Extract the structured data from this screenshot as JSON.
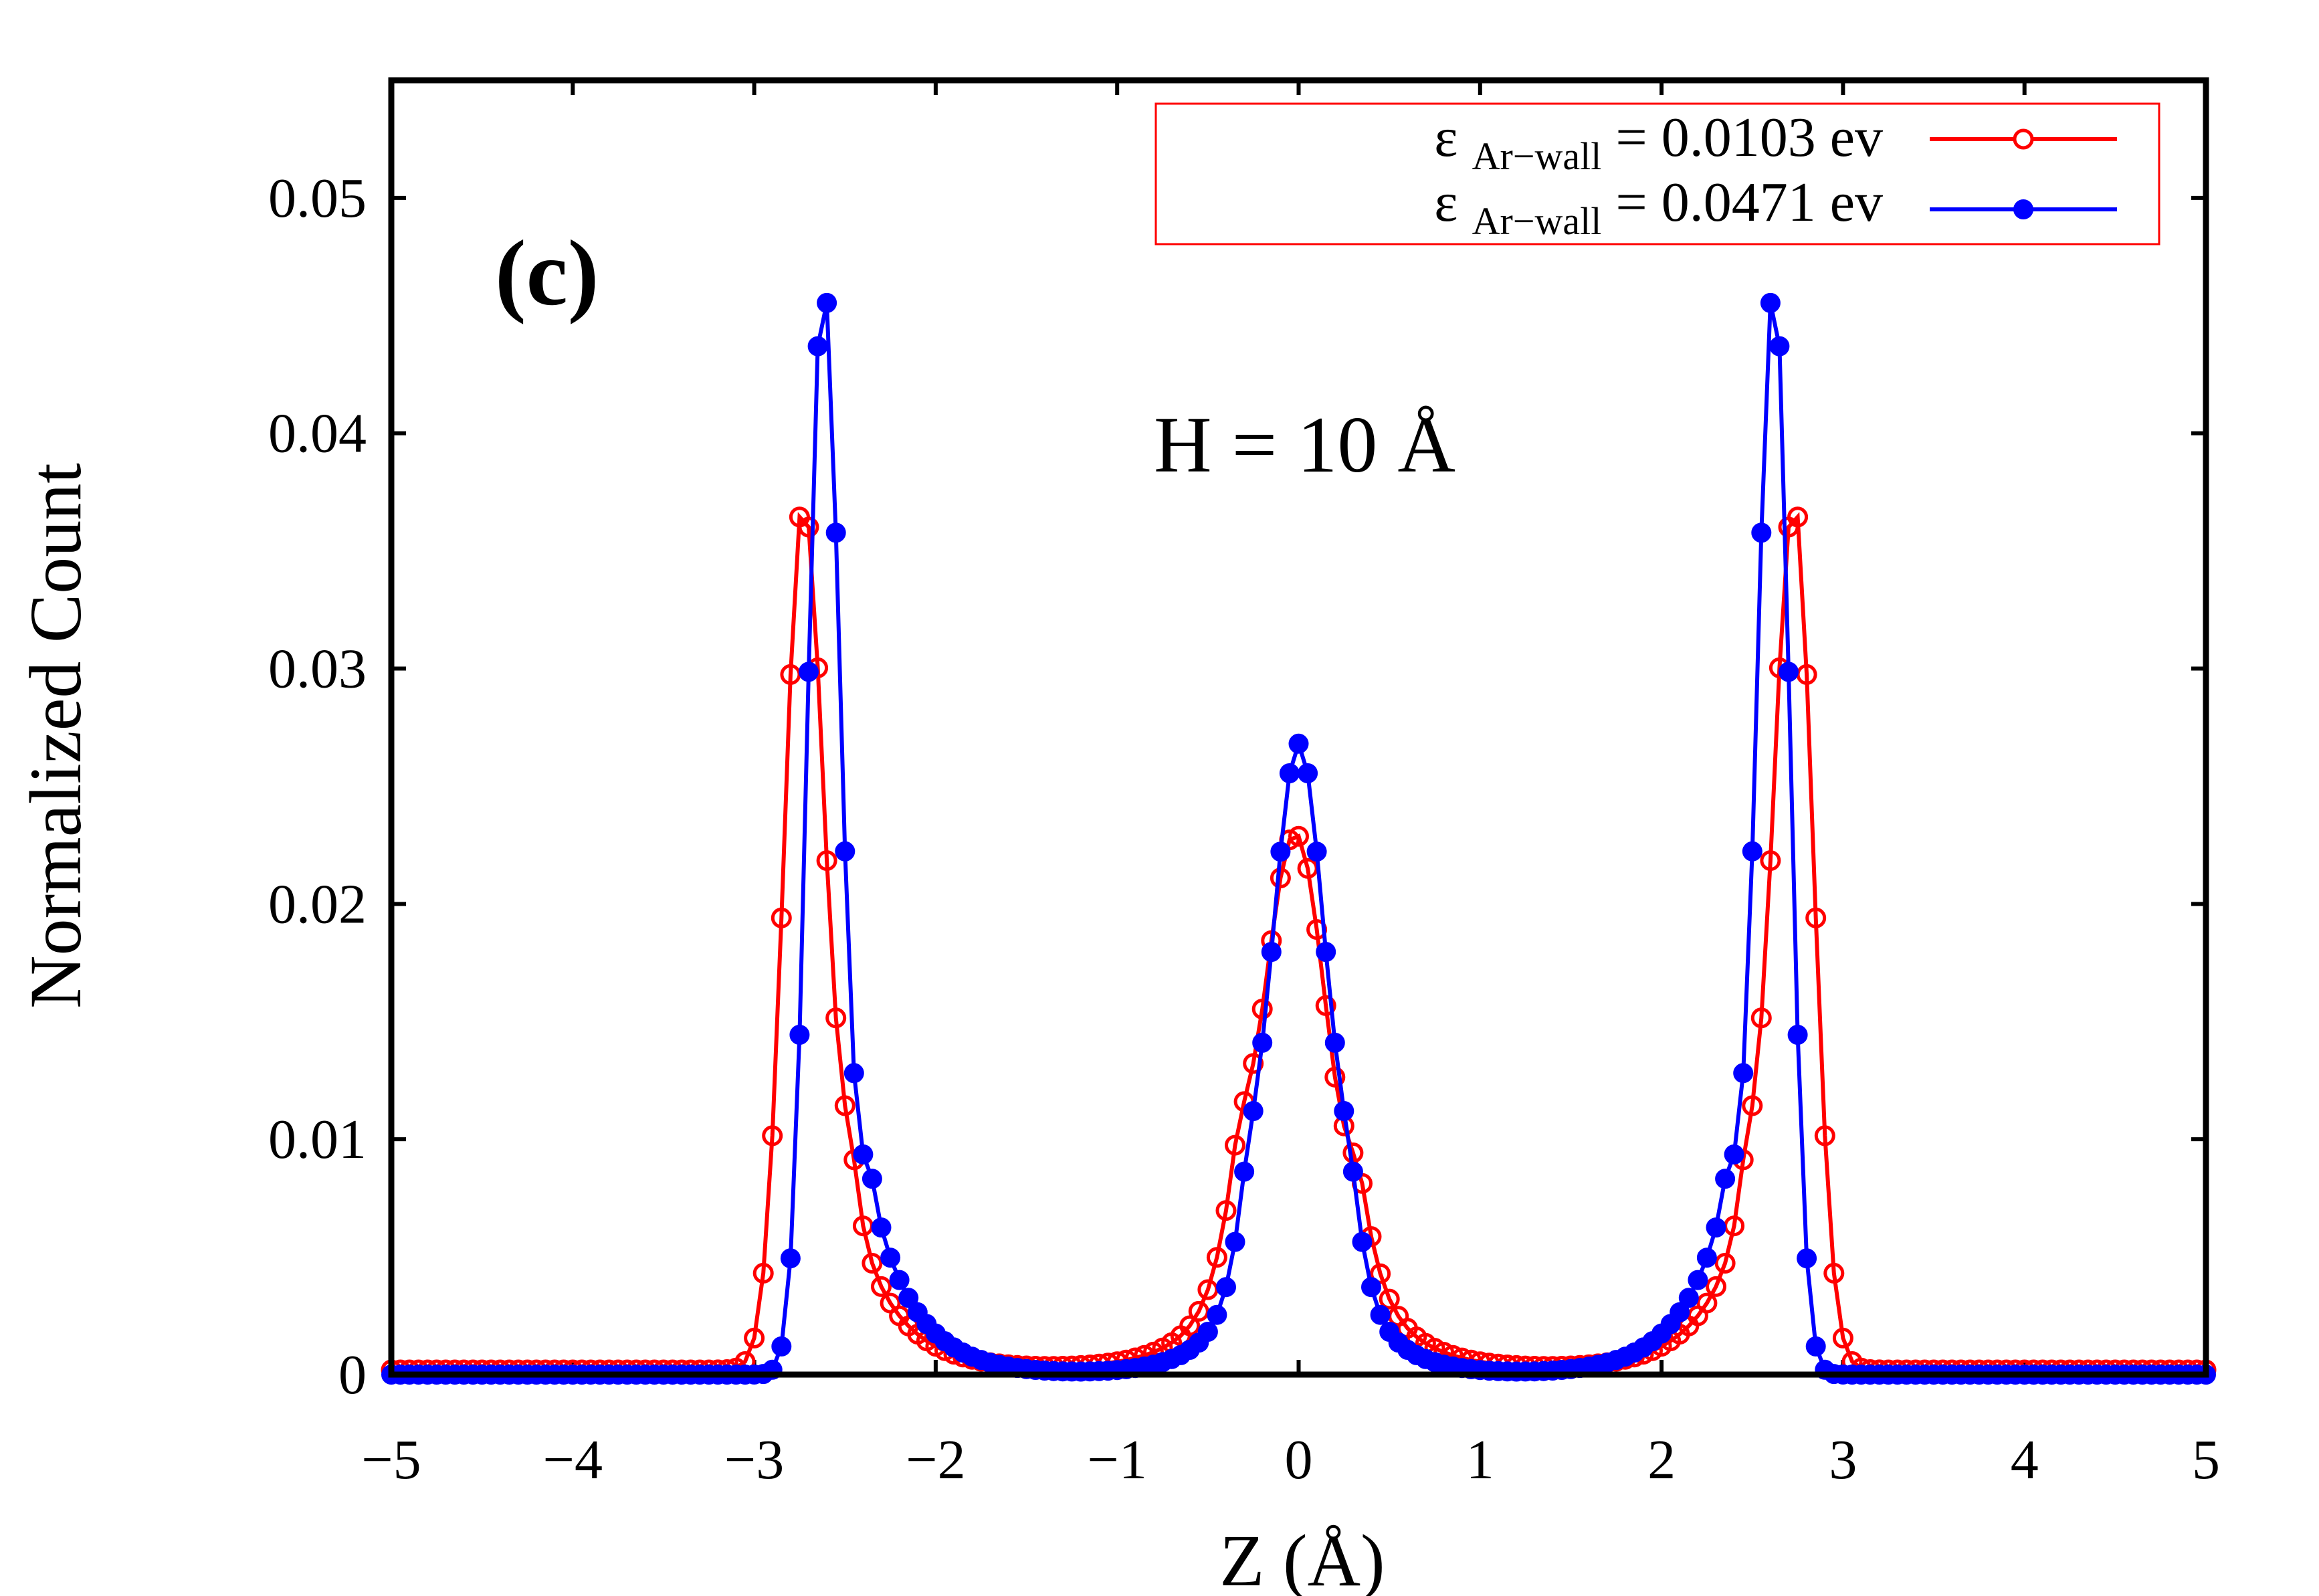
{
  "chart_data": {
    "type": "line",
    "title": "",
    "panel_label": "(c)",
    "annotation": "H = 10 Å",
    "xlabel": "Z (Å)",
    "ylabel": "Normalized Count",
    "xlim": [
      -5,
      5
    ],
    "ylim": [
      0,
      0.055
    ],
    "xticks": [
      -5,
      -4,
      -3,
      -2,
      -1,
      0,
      1,
      2,
      3,
      4,
      5
    ],
    "xtick_labels": [
      "−5",
      "−4",
      "−3",
      "−2",
      "−1",
      "0",
      "1",
      "2",
      "3",
      "4",
      "5"
    ],
    "yticks": [
      0,
      0.01,
      0.02,
      0.03,
      0.04,
      0.05
    ],
    "ytick_labels": [
      "0",
      "0.01",
      "0.02",
      "0.03",
      "0.04",
      "0.05"
    ],
    "legend_position": "top-right",
    "series": [
      {
        "name": "ε_Ar−wall = 0.0103 ev",
        "legend_symbol": "ε",
        "legend_subscript": "Ar−wall",
        "legend_value": "= 0.0103 ev",
        "color": "#ff0000",
        "marker": "open-circle",
        "peaks": [
          {
            "center": -2.73,
            "amp": 0.0369,
            "sigma_left": 0.105,
            "sigma_right": 0.12
          },
          {
            "center": -0.02,
            "amp": 0.0228,
            "sigma_left": 0.19,
            "sigma_right": 0.19
          },
          {
            "center": 2.73,
            "amp": 0.0369,
            "sigma_left": 0.12,
            "sigma_right": 0.105
          }
        ],
        "tails": [
          {
            "center": -2.45,
            "amp": 0.0065,
            "scale": 0.24,
            "dir": 1
          },
          {
            "center": 2.45,
            "amp": 0.0065,
            "scale": 0.24,
            "dir": -1
          },
          {
            "center": -0.35,
            "amp": 0.0045,
            "scale": 0.25,
            "dir": -1
          },
          {
            "center": 0.35,
            "amp": 0.0045,
            "scale": 0.25,
            "dir": 1
          }
        ],
        "baseline": 0.0002,
        "x_range": [
          -5,
          5
        ],
        "n_points": 201
      },
      {
        "name": "ε_Ar−wall = 0.0471 ev",
        "legend_symbol": "ε",
        "legend_subscript": "Ar−wall",
        "legend_value": "= 0.0471 ev",
        "color": "#0000ff",
        "marker": "filled-circle",
        "peaks": [
          {
            "center": -2.62,
            "amp": 0.0465,
            "sigma_left": 0.085,
            "sigma_right": 0.095
          },
          {
            "center": 0.0,
            "amp": 0.0268,
            "sigma_left": 0.16,
            "sigma_right": 0.16
          },
          {
            "center": 2.62,
            "amp": 0.0465,
            "sigma_left": 0.095,
            "sigma_right": 0.085
          }
        ],
        "tails": [
          {
            "center": -2.35,
            "amp": 0.0075,
            "scale": 0.24,
            "dir": 1
          },
          {
            "center": 2.35,
            "amp": 0.0075,
            "scale": 0.24,
            "dir": -1
          },
          {
            "center": -0.3,
            "amp": 0.004,
            "scale": 0.22,
            "dir": -1
          },
          {
            "center": 0.3,
            "amp": 0.004,
            "scale": 0.22,
            "dir": 1
          }
        ],
        "baseline": 0.0,
        "x_range": [
          -5,
          5
        ],
        "n_points": 201
      }
    ]
  }
}
